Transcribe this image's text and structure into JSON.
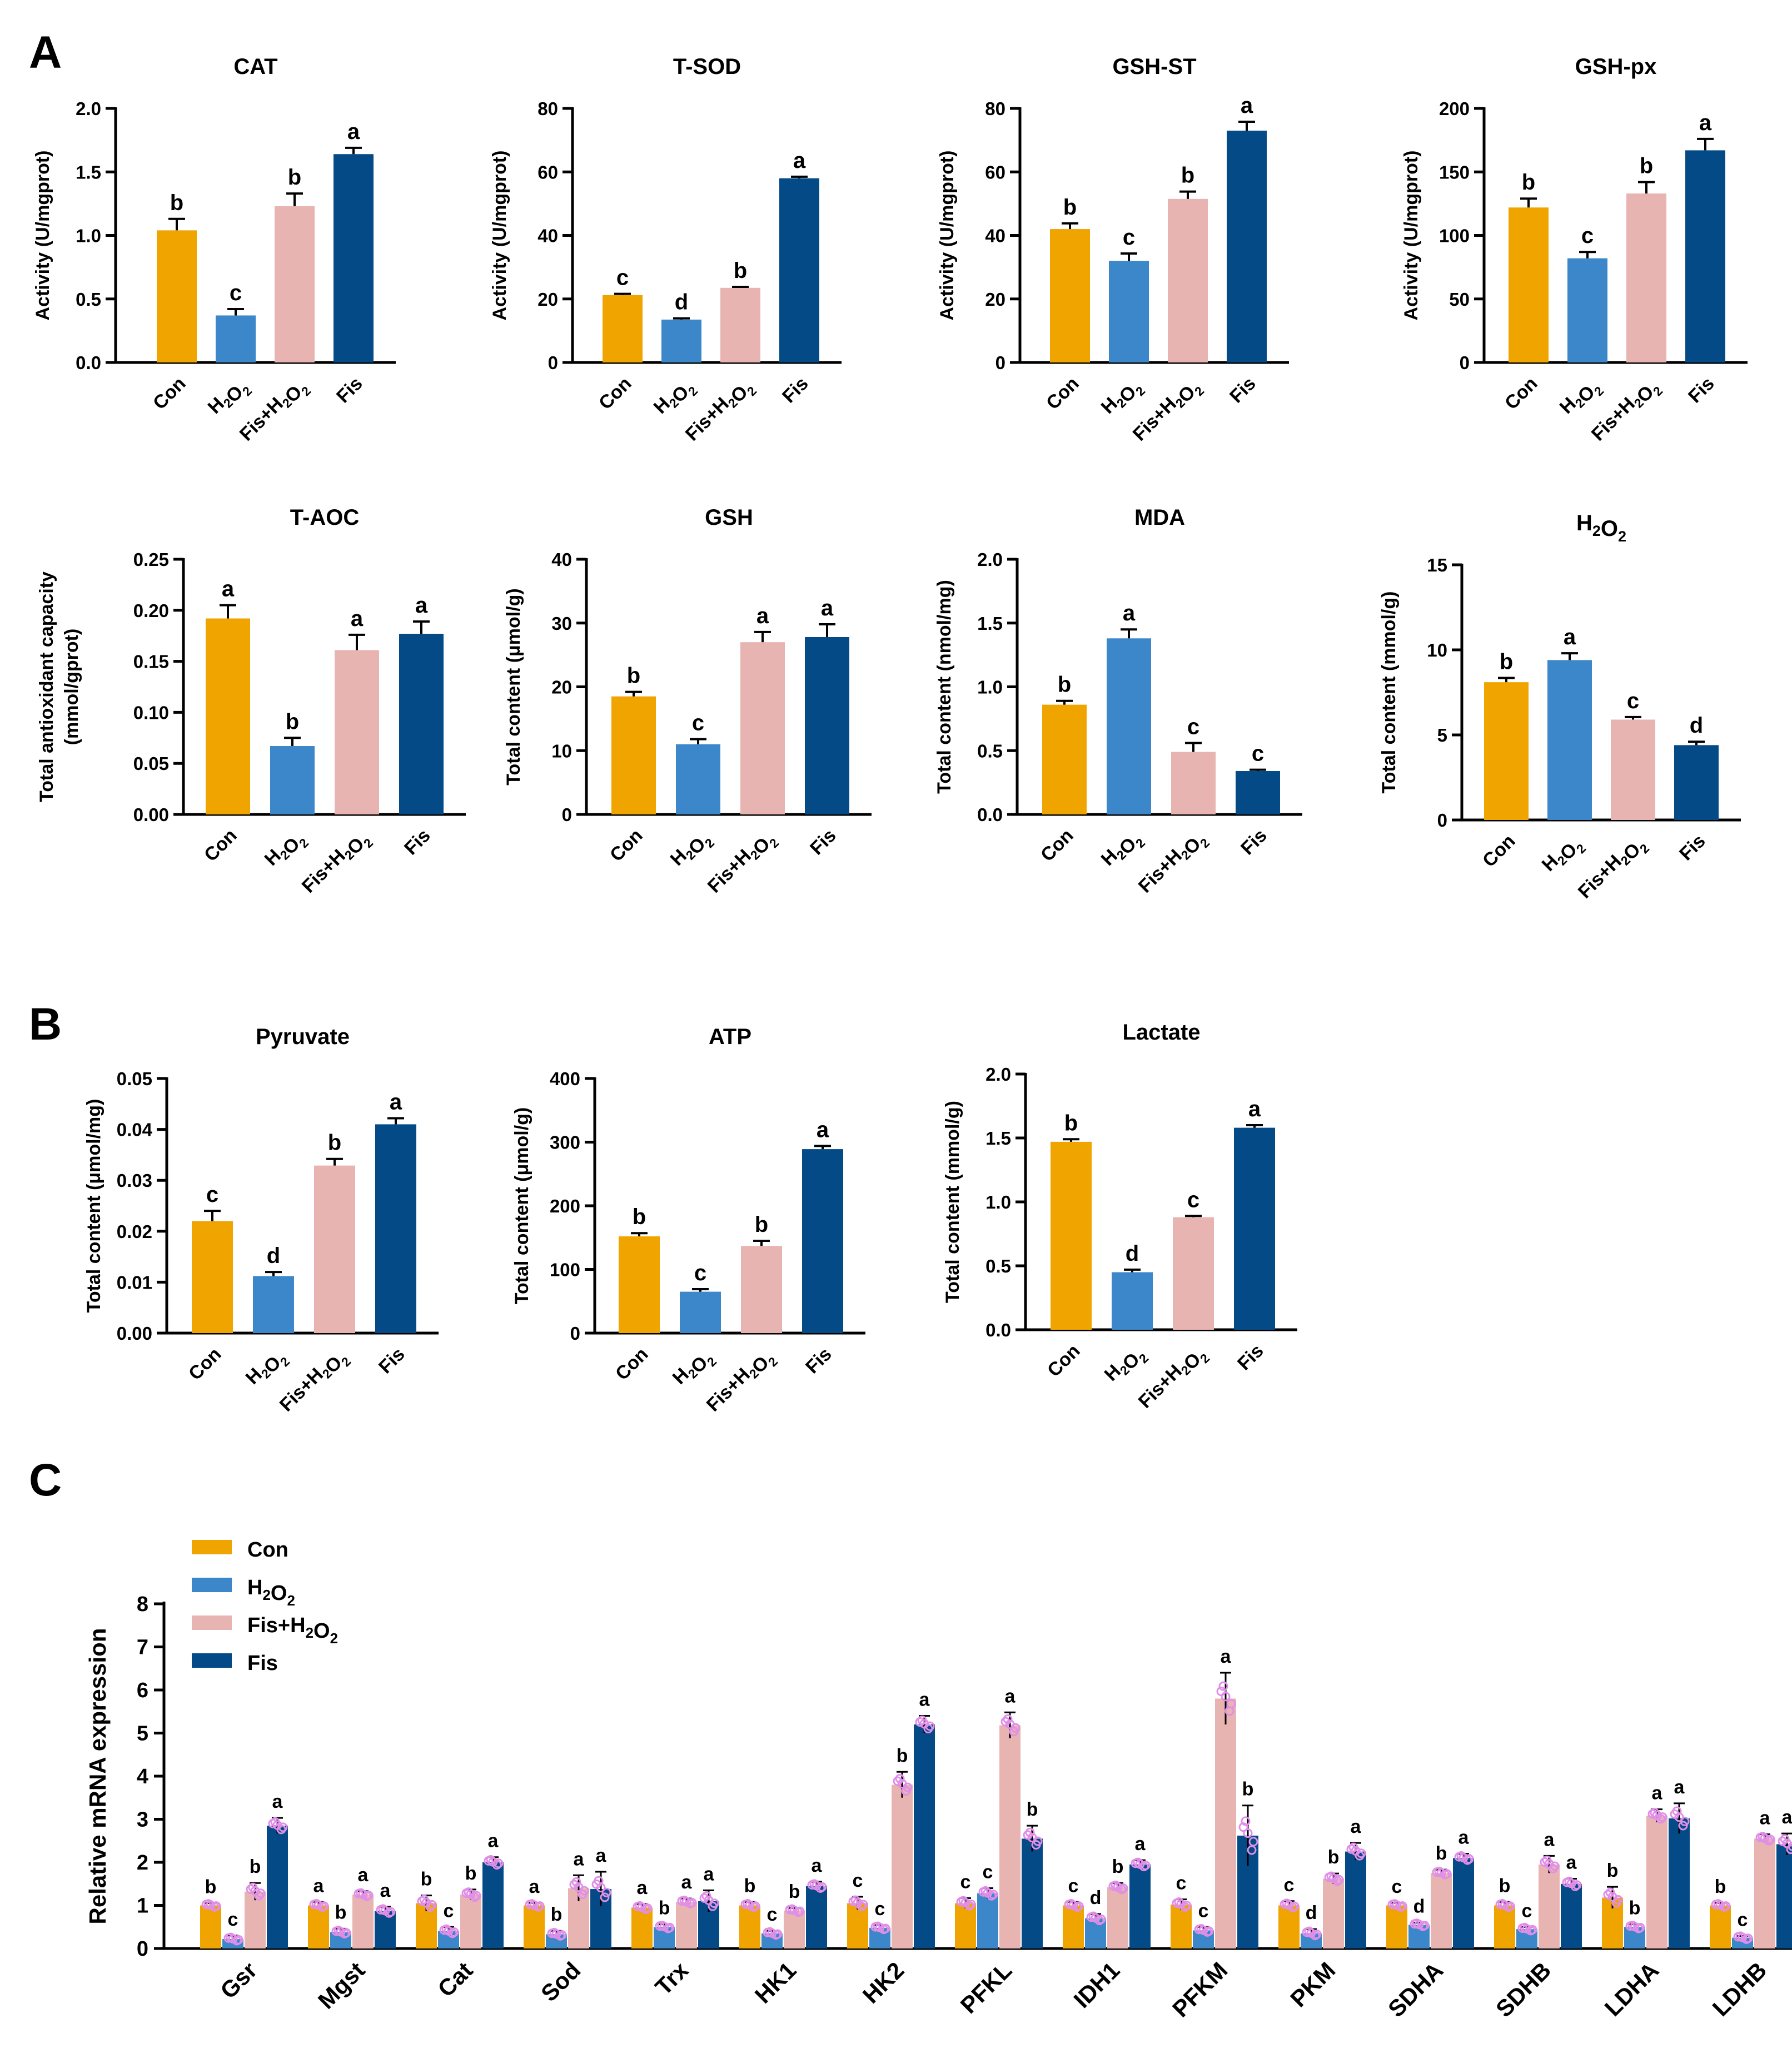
{
  "panels": {
    "A": "A",
    "B": "B",
    "C": "C"
  },
  "colors": {
    "Con": "#f0a400",
    "H2O2": "#3b87c9",
    "FisH2O2": "#e8b4b1",
    "Fis": "#044a86",
    "dots": "#e08ee8",
    "axis": "#000000"
  },
  "chart_data": [
    {
      "id": "cat",
      "panel": "A",
      "type": "bar",
      "title": "CAT",
      "ylabel": "Activity (U/mgprot)",
      "ylim": [
        0,
        2.0
      ],
      "yticks": [
        "0.0",
        "0.5",
        "1.0",
        "1.5",
        "2.0"
      ],
      "categories": [
        "Con",
        "H2O2",
        "Fis+H2O2",
        "Fis"
      ],
      "values": [
        1.04,
        0.37,
        1.23,
        1.64
      ],
      "errors": [
        0.09,
        0.05,
        0.1,
        0.05
      ],
      "letters": [
        "b",
        "c",
        "b",
        "a"
      ]
    },
    {
      "id": "tsod",
      "panel": "A",
      "type": "bar",
      "title": "T-SOD",
      "ylabel": "Activity (U/mgprot)",
      "ylim": [
        0,
        80
      ],
      "yticks": [
        "0",
        "20",
        "40",
        "60",
        "80"
      ],
      "categories": [
        "Con",
        "H2O2",
        "Fis+H2O2",
        "Fis"
      ],
      "values": [
        21.2,
        13.5,
        23.5,
        58
      ],
      "errors": [
        0.4,
        0.4,
        0.3,
        0.5
      ],
      "letters": [
        "c",
        "d",
        "b",
        "a"
      ]
    },
    {
      "id": "gshst",
      "panel": "A",
      "type": "bar",
      "title": "GSH-ST",
      "ylabel": "Activity (U/mgprot)",
      "ylim": [
        0,
        80
      ],
      "yticks": [
        "0",
        "20",
        "40",
        "60",
        "80"
      ],
      "categories": [
        "Con",
        "H2O2",
        "Fis+H2O2",
        "Fis"
      ],
      "values": [
        42,
        32,
        51.5,
        73
      ],
      "errors": [
        1.8,
        2.3,
        2.3,
        2.8
      ],
      "letters": [
        "b",
        "c",
        "b",
        "a"
      ]
    },
    {
      "id": "gshpx",
      "panel": "A",
      "type": "bar",
      "title": "GSH-px",
      "ylabel": "Activity (U/mgprot)",
      "ylim": [
        0,
        200
      ],
      "yticks": [
        "0",
        "50",
        "100",
        "150",
        "200"
      ],
      "categories": [
        "Con",
        "H2O2",
        "Fis+H2O2",
        "Fis"
      ],
      "values": [
        122,
        82,
        133,
        167
      ],
      "errors": [
        7,
        5,
        9,
        9
      ],
      "letters": [
        "b",
        "c",
        "b",
        "a"
      ]
    },
    {
      "id": "taoc",
      "panel": "A",
      "type": "bar",
      "title": "T-AOC",
      "ylabel": "Total antioxidant capacity",
      "ylabel2": "(mmol/gprot)",
      "ylim": [
        0,
        0.25
      ],
      "yticks": [
        "0.00",
        "0.05",
        "0.10",
        "0.15",
        "0.20",
        "0.25"
      ],
      "categories": [
        "Con",
        "H2O2",
        "Fis+H2O2",
        "Fis"
      ],
      "values": [
        0.192,
        0.067,
        0.161,
        0.177
      ],
      "errors": [
        0.013,
        0.008,
        0.015,
        0.012
      ],
      "letters": [
        "a",
        "b",
        "a",
        "a"
      ]
    },
    {
      "id": "gsh",
      "panel": "A",
      "type": "bar",
      "title": "GSH",
      "ylabel": "Total content (μmol/g)",
      "ylim": [
        0,
        40
      ],
      "yticks": [
        "0",
        "10",
        "20",
        "30",
        "40"
      ],
      "categories": [
        "Con",
        "H2O2",
        "Fis+H2O2",
        "Fis"
      ],
      "values": [
        18.5,
        11,
        27,
        27.8
      ],
      "errors": [
        0.7,
        0.8,
        1.6,
        2
      ],
      "letters": [
        "b",
        "c",
        "a",
        "a"
      ]
    },
    {
      "id": "mda",
      "panel": "A",
      "type": "bar",
      "title": "MDA",
      "ylabel": "Total content (nmol/mg)",
      "ylim": [
        0,
        2.0
      ],
      "yticks": [
        "0.0",
        "0.5",
        "1.0",
        "1.5",
        "2.0"
      ],
      "categories": [
        "Con",
        "H2O2",
        "Fis+H2O2",
        "Fis"
      ],
      "values": [
        0.86,
        1.38,
        0.49,
        0.34
      ],
      "errors": [
        0.03,
        0.07,
        0.07,
        0.01
      ],
      "letters": [
        "b",
        "a",
        "c",
        "c"
      ]
    },
    {
      "id": "h2o2",
      "panel": "A",
      "type": "bar",
      "title": "H2O2",
      "ylabel": "Total content (mmol/g)",
      "ylim": [
        0,
        15
      ],
      "yticks": [
        "0",
        "5",
        "10",
        "15"
      ],
      "categories": [
        "Con",
        "H2O2",
        "Fis+H2O2",
        "Fis"
      ],
      "values": [
        8.1,
        9.4,
        5.9,
        4.4
      ],
      "errors": [
        0.25,
        0.4,
        0.15,
        0.2
      ],
      "letters": [
        "b",
        "a",
        "c",
        "d"
      ]
    },
    {
      "id": "pyruvate",
      "panel": "B",
      "type": "bar",
      "title": "Pyruvate",
      "ylabel": "Total content (μmol/mg)",
      "ylim": [
        0,
        0.05
      ],
      "yticks": [
        "0.00",
        "0.01",
        "0.02",
        "0.03",
        "0.04",
        "0.05"
      ],
      "categories": [
        "Con",
        "H2O2",
        "Fis+H2O2",
        "Fis"
      ],
      "values": [
        0.022,
        0.0112,
        0.0329,
        0.041
      ],
      "errors": [
        0.002,
        0.0008,
        0.0013,
        0.0012
      ],
      "letters": [
        "c",
        "d",
        "b",
        "a"
      ]
    },
    {
      "id": "atp",
      "panel": "B",
      "type": "bar",
      "title": "ATP",
      "ylabel": "Total content (μmol/g)",
      "ylim": [
        0,
        400
      ],
      "yticks": [
        "0",
        "100",
        "200",
        "300",
        "400"
      ],
      "categories": [
        "Con",
        "H2O2",
        "Fis+H2O2",
        "Fis"
      ],
      "values": [
        152,
        65,
        137,
        289
      ],
      "errors": [
        5,
        4,
        8,
        5
      ],
      "letters": [
        "b",
        "c",
        "b",
        "a"
      ]
    },
    {
      "id": "lactate",
      "panel": "B",
      "type": "bar",
      "title": "Lactate",
      "ylabel": "Total content (mmol/g)",
      "ylim": [
        0,
        2.0
      ],
      "yticks": [
        "0.0",
        "0.5",
        "1.0",
        "1.5",
        "2.0"
      ],
      "categories": [
        "Con",
        "H2O2",
        "Fis+H2O2",
        "Fis"
      ],
      "values": [
        1.47,
        0.45,
        0.88,
        1.58
      ],
      "errors": [
        0.02,
        0.02,
        0.01,
        0.02
      ],
      "letters": [
        "b",
        "d",
        "c",
        "a"
      ]
    },
    {
      "id": "mrna",
      "panel": "C",
      "type": "bar",
      "title": "",
      "ylabel": "Relative mRNA expression",
      "ylim": [
        0,
        8
      ],
      "yticks": [
        "0",
        "1",
        "2",
        "3",
        "4",
        "5",
        "6",
        "7",
        "8"
      ],
      "legend": [
        "Con",
        "H2O2",
        "Fis+H2O2",
        "Fis"
      ],
      "categories": [
        "Gsr",
        "Mgst",
        "Cat",
        "Sod",
        "Trx",
        "HK1",
        "HK2",
        "PFKL",
        "IDH1",
        "PFKM",
        "PKM",
        "SDHA",
        "SDHB",
        "LDHA",
        "LDHB"
      ],
      "series": [
        {
          "name": "Con",
          "values": [
            1.0,
            1.0,
            1.05,
            1.0,
            0.95,
            1.0,
            1.05,
            1.05,
            1.0,
            1.02,
            1.0,
            1.0,
            1.0,
            1.18,
            1.0
          ],
          "errors": [
            0.05,
            0.08,
            0.18,
            0.06,
            0.08,
            0.08,
            0.15,
            0.12,
            0.08,
            0.12,
            0.1,
            0.06,
            0.08,
            0.25,
            0.06
          ],
          "letters": [
            "b",
            "a",
            "b",
            "a",
            "a",
            "b",
            "c",
            "c",
            "c",
            "c",
            "c",
            "c",
            "b",
            "b",
            "b"
          ]
        },
        {
          "name": "H2O2",
          "values": [
            0.22,
            0.38,
            0.4,
            0.33,
            0.5,
            0.35,
            0.48,
            1.28,
            0.7,
            0.42,
            0.35,
            0.55,
            0.45,
            0.5,
            0.25
          ],
          "errors": [
            0.08,
            0.08,
            0.1,
            0.08,
            0.06,
            0.06,
            0.06,
            0.12,
            0.1,
            0.08,
            0.1,
            0.05,
            0.05,
            0.06,
            0.04
          ],
          "letters": [
            "c",
            "b",
            "c",
            "b",
            "b",
            "c",
            "c",
            "c",
            "d",
            "c",
            "d",
            "d",
            "c",
            "b",
            "c"
          ]
        },
        {
          "name": "Fis+H2O2",
          "values": [
            1.32,
            1.25,
            1.25,
            1.4,
            1.08,
            0.88,
            3.8,
            5.18,
            1.42,
            5.8,
            1.62,
            1.75,
            1.95,
            3.08,
            2.55
          ],
          "errors": [
            0.2,
            0.08,
            0.12,
            0.3,
            0.08,
            0.06,
            0.3,
            0.3,
            0.1,
            0.6,
            0.12,
            0.08,
            0.2,
            0.15,
            0.1
          ],
          "letters": [
            "b",
            "a",
            "b",
            "a",
            "a",
            "b",
            "b",
            "a",
            "b",
            "a",
            "b",
            "b",
            "a",
            "a",
            "a"
          ]
        },
        {
          "name": "Fis",
          "values": [
            2.85,
            0.87,
            2.0,
            1.38,
            1.1,
            1.45,
            5.2,
            2.55,
            1.95,
            2.62,
            2.25,
            2.1,
            1.5,
            3.02,
            2.42
          ],
          "errors": [
            0.18,
            0.1,
            0.12,
            0.4,
            0.25,
            0.1,
            0.2,
            0.3,
            0.1,
            0.7,
            0.2,
            0.1,
            0.12,
            0.35,
            0.25
          ],
          "letters": [
            "a",
            "a",
            "a",
            "a",
            "a",
            "a",
            "a",
            "b",
            "a",
            "b",
            "a",
            "a",
            "a",
            "a",
            "a"
          ]
        }
      ]
    }
  ]
}
